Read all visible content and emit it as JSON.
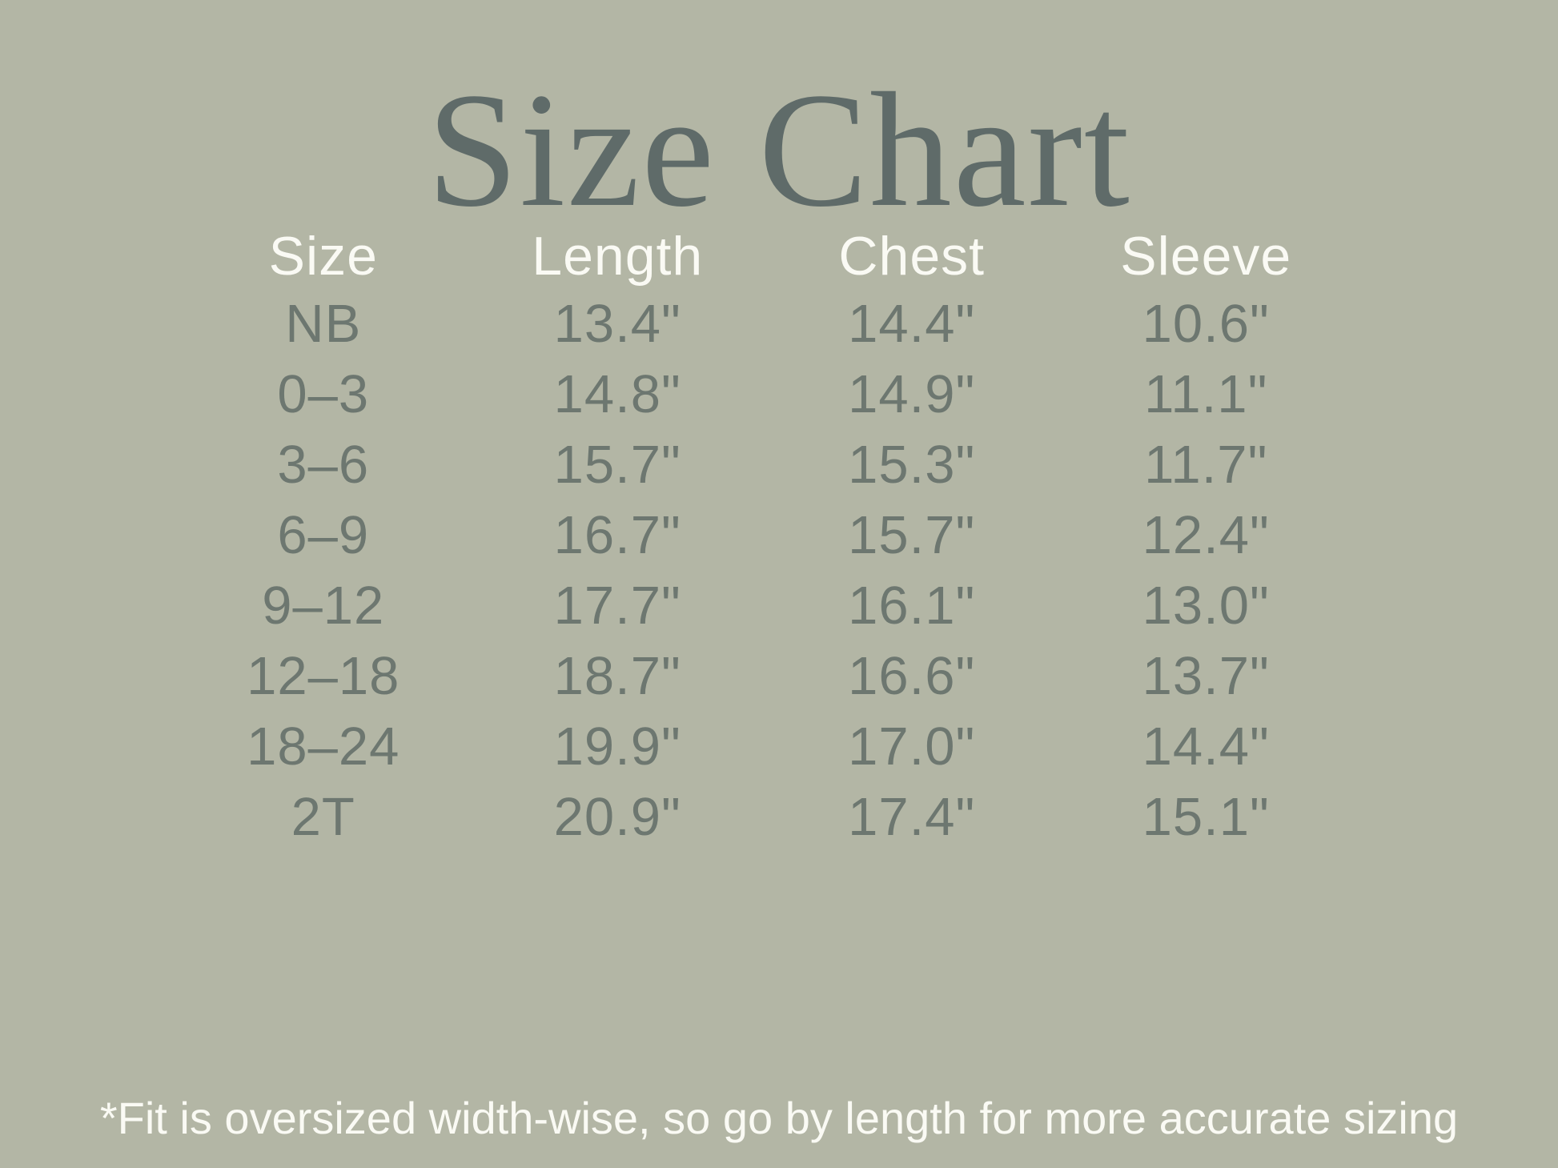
{
  "title": "Size Chart",
  "footnote": "*Fit is oversized width-wise, so go by length for more accurate sizing",
  "colors": {
    "background": "#b3b6a5",
    "title_text": "#5f6b69",
    "header_text": "#fafaf4",
    "row_text": "#6d7770",
    "footnote_text": "#fafaf4"
  },
  "table": {
    "headers": [
      "Size",
      "Length",
      "Chest",
      "Sleeve"
    ],
    "rows": [
      [
        "NB",
        "13.4\"",
        "14.4\"",
        "10.6\""
      ],
      [
        "0–3",
        "14.8\"",
        "14.9\"",
        "11.1\""
      ],
      [
        "3–6",
        "15.7\"",
        "15.3\"",
        "11.7\""
      ],
      [
        "6–9",
        "16.7\"",
        "15.7\"",
        "12.4\""
      ],
      [
        "9–12",
        "17.7\"",
        "16.1\"",
        "13.0\""
      ],
      [
        "12–18",
        "18.7\"",
        "16.6\"",
        "13.7\""
      ],
      [
        "18–24",
        "19.9\"",
        "17.0\"",
        "14.4\""
      ],
      [
        "2T",
        "20.9\"",
        "17.4\"",
        "15.1\""
      ]
    ]
  },
  "chart_data": {
    "type": "table",
    "title": "Size Chart",
    "columns": [
      "Size",
      "Length",
      "Chest",
      "Sleeve"
    ],
    "units": "inches",
    "rows": [
      {
        "size": "NB",
        "length_in": 13.4,
        "chest_in": 14.4,
        "sleeve_in": 10.6
      },
      {
        "size": "0-3",
        "length_in": 14.8,
        "chest_in": 14.9,
        "sleeve_in": 11.1
      },
      {
        "size": "3-6",
        "length_in": 15.7,
        "chest_in": 15.3,
        "sleeve_in": 11.7
      },
      {
        "size": "6-9",
        "length_in": 16.7,
        "chest_in": 15.7,
        "sleeve_in": 12.4
      },
      {
        "size": "9-12",
        "length_in": 17.7,
        "chest_in": 16.1,
        "sleeve_in": 13.0
      },
      {
        "size": "12-18",
        "length_in": 18.7,
        "chest_in": 16.6,
        "sleeve_in": 13.7
      },
      {
        "size": "18-24",
        "length_in": 19.9,
        "chest_in": 17.0,
        "sleeve_in": 14.4
      },
      {
        "size": "2T",
        "length_in": 20.9,
        "chest_in": 17.4,
        "sleeve_in": 15.1
      }
    ],
    "footnote": "*Fit is oversized width-wise, so go by length for more accurate sizing"
  }
}
